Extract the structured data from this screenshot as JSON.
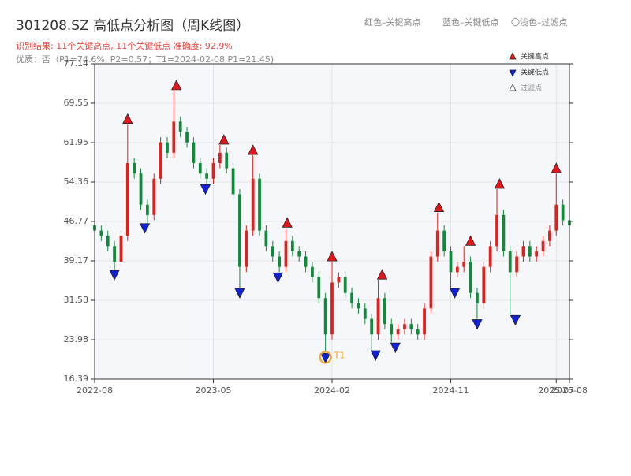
{
  "chart_data": {
    "type": "candlestick",
    "title": "301208.SZ 高低点分析图（周K线图）",
    "subtitle": "识别结果: 11个关键高点, 11个关键低点   准确度: 92.9%",
    "note": "优质：否（P1=74.6%, P2=0.57；T1=2024-02-08 P1=21.45)",
    "header_legend": [
      "红色–关键高点",
      "蓝色–关键低点",
      "〇浅色–过滤点"
    ],
    "legend": [
      "关键高点",
      "关键低点",
      "过滤点"
    ],
    "up_color": "#e0201b",
    "down_color": "#12893a",
    "high_color": "#e8141b",
    "low_color": "#1020d8",
    "filter_color": "#f5a020",
    "xlim": [
      0,
      36
    ],
    "xticks": [
      {
        "value": 0,
        "label": "2022-08"
      },
      {
        "value": 9,
        "label": "2023-05"
      },
      {
        "value": 18,
        "label": "2024-02"
      },
      {
        "value": 27,
        "label": "2024-11"
      },
      {
        "value": 35,
        "label": "2025-07"
      },
      {
        "value": 36,
        "label": "2025-08"
      }
    ],
    "ylim": [
      16.39,
      77.14
    ],
    "yticks": [
      16.39,
      23.98,
      31.58,
      39.17,
      46.77,
      54.36,
      61.95,
      69.55,
      77.14
    ],
    "grid": true,
    "x": [
      0,
      0.5,
      1,
      1.5,
      2,
      2.5,
      3,
      3.5,
      4,
      4.5,
      5,
      5.5,
      6,
      6.5,
      7,
      7.5,
      8,
      8.5,
      9,
      9.5,
      10,
      10.5,
      11,
      11.5,
      12,
      12.5,
      13,
      13.5,
      14,
      14.5,
      15,
      15.5,
      16,
      16.5,
      17,
      17.5,
      18,
      18.5,
      19,
      19.5,
      20,
      20.5,
      21,
      21.5,
      22,
      22.5,
      23,
      23.5,
      24,
      24.5,
      25,
      25.5,
      26,
      26.5,
      27,
      27.5,
      28,
      28.5,
      29,
      29.5,
      30,
      30.5,
      31,
      31.5,
      32,
      32.5,
      33,
      33.5,
      34,
      34.5,
      35,
      35.5,
      36
    ],
    "open": [
      46,
      45,
      44,
      42,
      39,
      44,
      58,
      56,
      50,
      48,
      55,
      62,
      60,
      66,
      64,
      62,
      58,
      56,
      55,
      58,
      60,
      57,
      52,
      38,
      45,
      55,
      45,
      42,
      40,
      38,
      43,
      41,
      40,
      38,
      36,
      32,
      25,
      35,
      36,
      33,
      31,
      30,
      28,
      25,
      32,
      27,
      25,
      26,
      27,
      26,
      25,
      30,
      40,
      45,
      41,
      37,
      38,
      39,
      33,
      31,
      38,
      42,
      48,
      41,
      37,
      40,
      42,
      40,
      41,
      43,
      45,
      50,
      47
    ],
    "high": [
      47,
      46,
      45,
      43,
      45,
      65.5,
      59,
      57,
      51,
      56,
      63,
      63,
      72,
      67,
      65,
      63,
      59,
      57,
      59,
      61.5,
      61,
      58,
      53,
      46,
      59.5,
      56,
      46,
      43,
      41,
      45.5,
      44,
      42,
      41,
      39,
      37,
      33,
      39,
      37,
      37,
      34,
      32,
      31,
      29,
      35.5,
      33,
      28,
      27,
      28,
      28,
      27,
      31,
      41,
      48.5,
      46,
      42,
      39,
      42,
      40,
      34,
      39,
      43,
      53,
      49,
      42,
      41,
      43,
      43,
      42,
      44,
      46,
      56,
      51,
      48
    ],
    "low": [
      44,
      43,
      41,
      37.5,
      38,
      43,
      55,
      49,
      46.5,
      47,
      54,
      59,
      59,
      63,
      61,
      57,
      55,
      54,
      54,
      57,
      56,
      51,
      34,
      37,
      44,
      44,
      41,
      39,
      37,
      37,
      40,
      39,
      37,
      35,
      31,
      21.5,
      24,
      34,
      32,
      30,
      29,
      27,
      22,
      24,
      26,
      23.5,
      24,
      25,
      25,
      24,
      24,
      29,
      39,
      40,
      34,
      36,
      37,
      32,
      28,
      30,
      37,
      41,
      40,
      28.8,
      36,
      39,
      39,
      39,
      40,
      42,
      44,
      46,
      45
    ],
    "close": [
      45,
      44,
      42,
      39,
      44,
      58,
      56,
      50,
      48,
      55,
      62,
      60,
      66,
      64,
      62,
      58,
      56,
      55,
      58,
      60,
      57,
      52,
      38,
      45,
      55,
      45,
      42,
      40,
      38,
      43,
      41,
      40,
      38,
      36,
      32,
      25,
      35,
      36,
      33,
      31,
      30,
      28,
      25,
      32,
      27,
      25,
      26,
      27,
      26,
      25,
      30,
      40,
      45,
      41,
      37,
      38,
      39,
      33,
      31,
      38,
      42,
      48,
      41,
      37,
      40,
      42,
      40,
      41,
      43,
      45,
      50,
      47,
      46
    ],
    "key_highs": {
      "x": [
        2.5,
        6.2,
        9.8,
        12,
        14.6,
        18,
        21.8,
        26.1,
        28.5,
        30.7,
        35
      ],
      "values": [
        65.5,
        72,
        61.5,
        59.5,
        45.5,
        39,
        35.5,
        48.5,
        42,
        53,
        56
      ]
    },
    "key_lows": {
      "x": [
        1.5,
        3.8,
        8.4,
        11,
        13.9,
        17.5,
        21.3,
        22.8,
        27.3,
        29,
        31.9
      ],
      "values": [
        37.5,
        46.5,
        54,
        34,
        37,
        21.5,
        22,
        23.5,
        34,
        28,
        28.8
      ]
    },
    "filtered": {
      "x": [
        17.5
      ],
      "values": [
        21.5
      ],
      "labels": [
        "T1"
      ]
    }
  }
}
